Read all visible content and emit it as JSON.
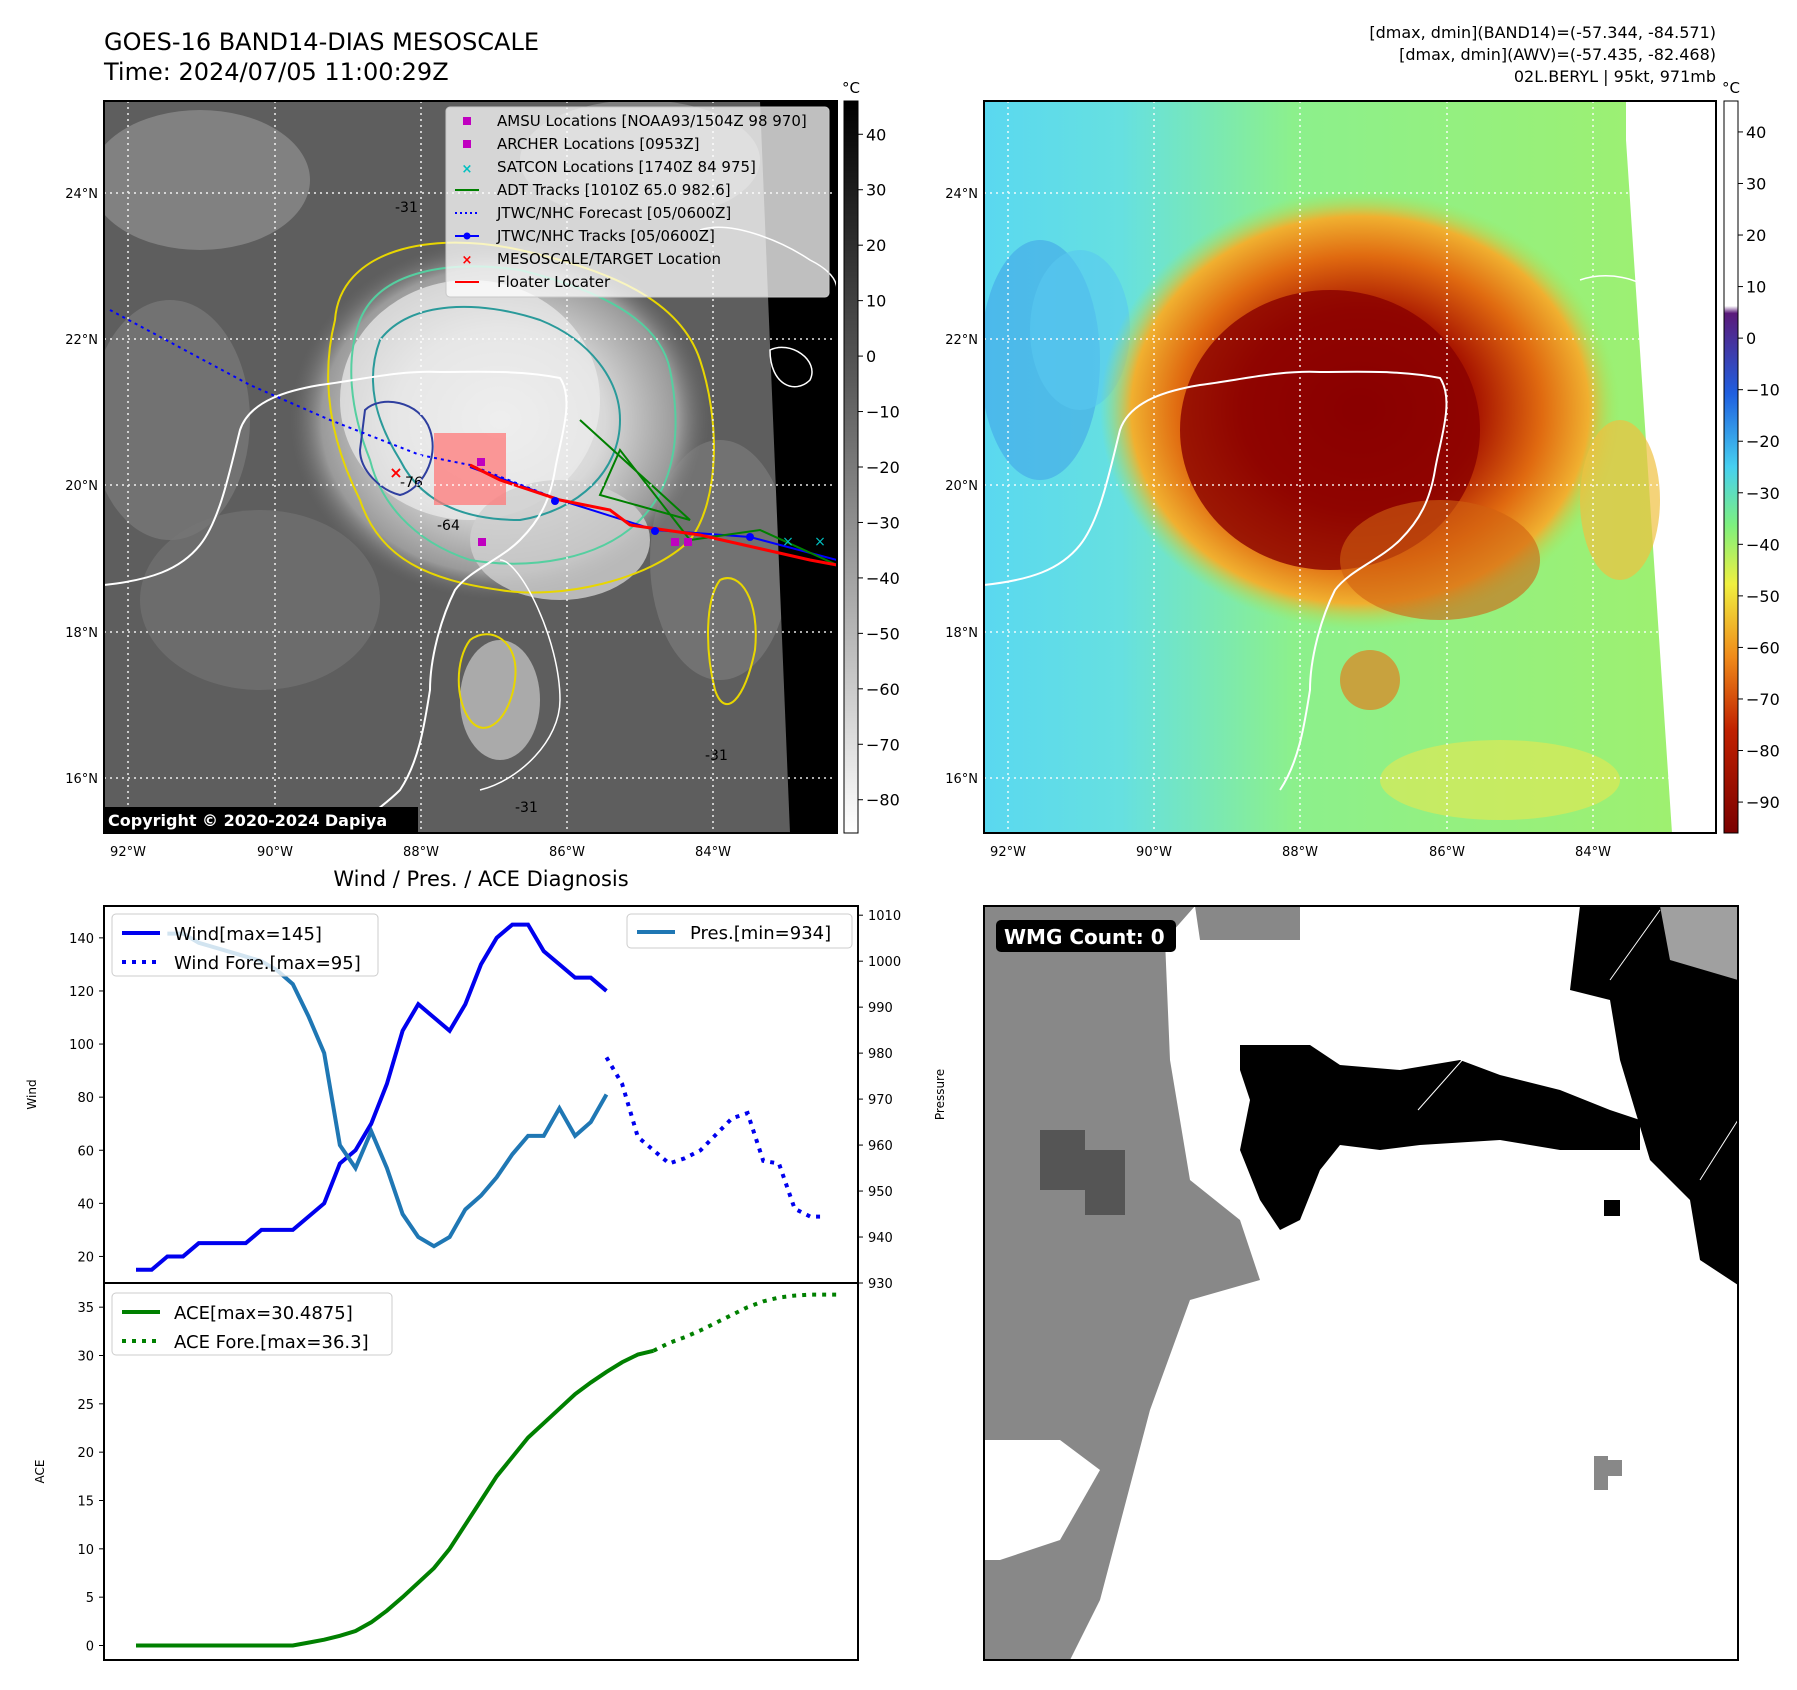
{
  "header": {
    "title_line1": "GOES-16 BAND14-DIAS MESOSCALE",
    "title_line2": "Time: 2024/07/05 11:00:29Z",
    "right_line1": "[dmax, dmin](BAND14)=(-57.344, -84.571)",
    "right_line2": "[dmax, dmin](AWV)=(-57.435, -82.468)",
    "right_line3": "02L.BERYL | 95kt, 971mb"
  },
  "map_panel": {
    "lat_labels": [
      "24°N",
      "22°N",
      "20°N",
      "18°N",
      "16°N"
    ],
    "lon_labels": [
      "92°W",
      "90°W",
      "88°W",
      "86°W",
      "84°W"
    ],
    "copyright": "Copyright © 2020-2024 Dapiya",
    "contour_labels": [
      "-31",
      "-64",
      "-76",
      "-31",
      "-31"
    ],
    "legend": [
      {
        "label": "AMSU Locations [NOAA93/1504Z 98 970]",
        "color": "#c000c0",
        "marker": "square"
      },
      {
        "label": "ARCHER Locations [0953Z]",
        "color": "#c000c0",
        "marker": "square"
      },
      {
        "label": "SATCON Locations [1740Z 84 975]",
        "color": "#00c0c0",
        "marker": "x"
      },
      {
        "label": "ADT Tracks [1010Z 65.0 982.6]",
        "color": "#008000",
        "marker": "line"
      },
      {
        "label": "JTWC/NHC Forecast [05/0600Z]",
        "color": "#0000ff",
        "marker": "dotted"
      },
      {
        "label": "JTWC/NHC Tracks [05/0600Z]",
        "color": "#0000ff",
        "marker": "line-dot"
      },
      {
        "label": "MESOSCALE/TARGET Location",
        "color": "#ff0000",
        "marker": "x"
      },
      {
        "label": "Floater Locater",
        "color": "#ff0000",
        "marker": "line"
      }
    ]
  },
  "colorbar_band14": {
    "unit": "°C",
    "ticks": [
      "40",
      "30",
      "20",
      "10",
      "0",
      "−10",
      "−20",
      "−30",
      "−40",
      "−50",
      "−60",
      "−70",
      "−80"
    ]
  },
  "colorbar_awv": {
    "unit": "°C",
    "ticks": [
      "40",
      "30",
      "20",
      "10",
      "0",
      "−10",
      "−20",
      "−30",
      "−40",
      "−50",
      "−60",
      "−70",
      "−80",
      "−90"
    ]
  },
  "diag_title": "Wind / Pres. / ACE Diagnosis",
  "wmg_label": "WMG Count: 0",
  "chart_data": [
    {
      "type": "line",
      "name": "wind-pressure",
      "ylabel": "Wind",
      "ylabel_right": "Pressure",
      "ylim": [
        10,
        152
      ],
      "ylim_right": [
        930,
        1012
      ],
      "yticks": [
        20,
        40,
        60,
        80,
        100,
        120,
        140
      ],
      "yticks_right": [
        930,
        940,
        950,
        960,
        970,
        980,
        990,
        1000,
        1010
      ],
      "xlim": [
        0,
        44
      ],
      "series": [
        {
          "name": "Wind[max=145]",
          "axis": "left",
          "style": "solid",
          "color": "#0000ee",
          "x": [
            0,
            1,
            2,
            3,
            4,
            5,
            6,
            7,
            8,
            9,
            10,
            11,
            12,
            13,
            14,
            15,
            16,
            17,
            18,
            19,
            20,
            21,
            22,
            23,
            24,
            25,
            26,
            27,
            28,
            29,
            30
          ],
          "values": [
            15,
            15,
            20,
            20,
            25,
            25,
            25,
            25,
            30,
            30,
            30,
            35,
            40,
            55,
            60,
            70,
            85,
            105,
            115,
            110,
            105,
            115,
            130,
            140,
            145,
            145,
            135,
            130,
            125,
            125,
            120
          ]
        },
        {
          "name": "Wind Fore.[max=95]",
          "axis": "left",
          "style": "dotted",
          "color": "#0000ee",
          "x": [
            30,
            31,
            32,
            33,
            34,
            35,
            36,
            37,
            38,
            39,
            40,
            41,
            42,
            43,
            44
          ],
          "values": [
            95,
            85,
            65,
            60,
            55,
            57,
            60,
            66,
            72,
            74,
            56,
            55,
            38,
            35,
            35
          ]
        },
        {
          "name": "Pres.[min=934]",
          "axis": "right",
          "style": "solid",
          "color": "#1f77b4",
          "x": [
            2,
            3,
            4,
            5,
            6,
            7,
            8,
            9,
            10,
            11,
            12,
            13,
            14,
            15,
            16,
            17,
            18,
            19,
            20,
            21,
            22,
            23,
            24,
            25,
            26,
            27,
            28,
            29,
            30
          ],
          "values": [
            1006,
            1006,
            1004,
            1003,
            1002,
            1001,
            1000,
            998,
            995,
            988,
            980,
            960,
            955,
            963,
            955,
            945,
            940,
            938,
            940,
            946,
            949,
            953,
            958,
            962,
            962,
            968,
            962,
            965,
            971
          ]
        }
      ]
    },
    {
      "type": "line",
      "name": "ace",
      "ylabel": "ACE",
      "ylim": [
        -1.5,
        37.5
      ],
      "yticks": [
        0,
        5,
        10,
        15,
        20,
        25,
        30,
        35
      ],
      "xlim": [
        0,
        44
      ],
      "series": [
        {
          "name": "ACE[max=30.4875]",
          "style": "solid",
          "color": "#008000",
          "x": [
            0,
            2,
            4,
            6,
            8,
            10,
            11,
            12,
            13,
            14,
            15,
            16,
            17,
            18,
            19,
            20,
            21,
            22,
            23,
            24,
            25,
            26,
            27,
            28,
            29,
            30,
            31,
            32,
            33
          ],
          "values": [
            0,
            0,
            0,
            0,
            0,
            0,
            0.3,
            0.6,
            1.0,
            1.5,
            2.4,
            3.6,
            5.0,
            6.5,
            8.0,
            10.0,
            12.5,
            15.0,
            17.5,
            19.5,
            21.5,
            23.0,
            24.5,
            26.0,
            27.2,
            28.3,
            29.3,
            30.1,
            30.49
          ]
        },
        {
          "name": "ACE Fore.[max=36.3]",
          "style": "dotted",
          "color": "#008000",
          "x": [
            33,
            34,
            35,
            36,
            37,
            38,
            39,
            40,
            41,
            42,
            43,
            44,
            45
          ],
          "values": [
            30.49,
            31.3,
            31.9,
            32.6,
            33.4,
            34.2,
            35.0,
            35.6,
            36.0,
            36.2,
            36.3,
            36.3,
            36.3
          ]
        }
      ]
    }
  ]
}
